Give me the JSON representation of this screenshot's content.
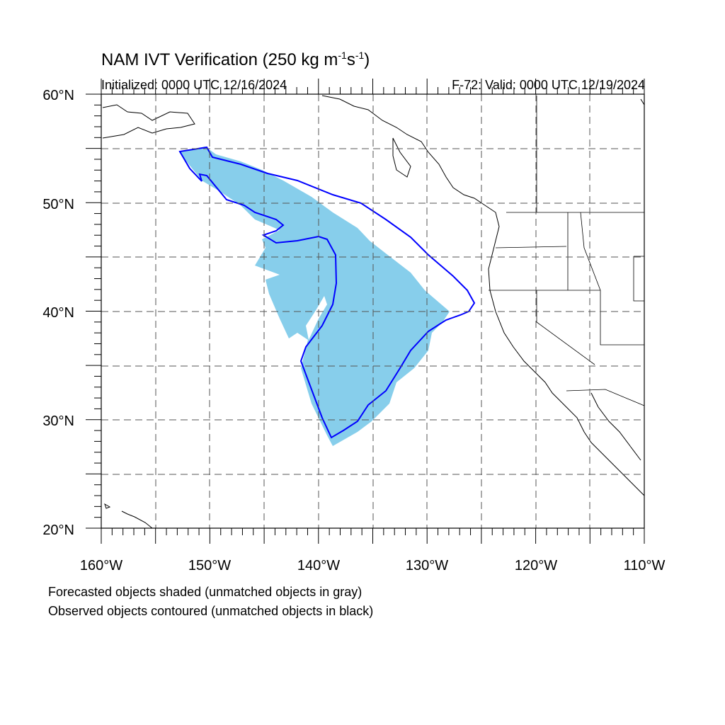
{
  "title": {
    "main": "NAM IVT Verification (250 kg m",
    "exp1": "-1",
    "mid": "s",
    "exp2": "-1",
    "end": ")"
  },
  "initialized": "Initialized: 0000 UTC 12/16/2024",
  "valid": "F-72: Valid: 0000 UTC 12/19/2024",
  "notes": {
    "forecast": "Forecasted objects shaded (unmatched objects in gray)",
    "observed": "Observed objects contoured (unmatched objects in black)"
  },
  "axes": {
    "lat_labels": [
      "60°N",
      "50°N",
      "40°N",
      "30°N",
      "20°N"
    ],
    "lon_labels": [
      "160°W",
      "150°W",
      "140°W",
      "130°W",
      "120°W",
      "110°W"
    ],
    "lon_range": [
      -160,
      -110
    ],
    "lat_range": [
      20,
      60
    ]
  },
  "colors": {
    "forecast_fill": "#87ceeb",
    "observed_contour": "#0000ff",
    "coastline": "#000000",
    "grid": "#555555"
  }
}
